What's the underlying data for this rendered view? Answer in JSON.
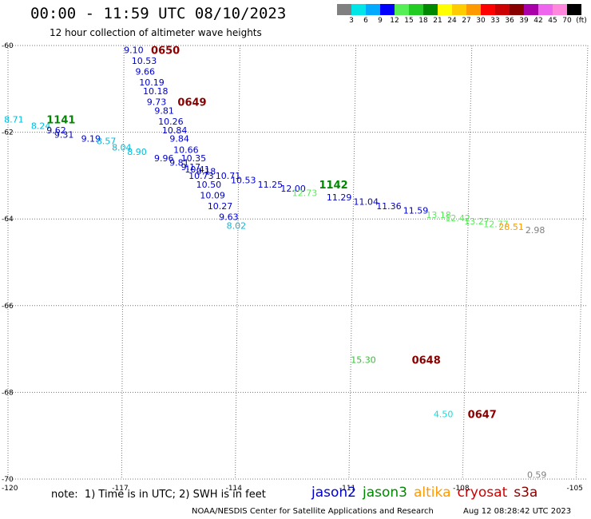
{
  "header": {
    "title": "00:00 - 11:59 UTC 08/10/2023",
    "subtitle": "12 hour collection of altimeter wave heights"
  },
  "colorbar": {
    "colors": [
      "#808080",
      "#00e5e5",
      "#00aaff",
      "#0000ff",
      "#55ee55",
      "#22cc22",
      "#008800",
      "#ffff00",
      "#ffcc00",
      "#ff9900",
      "#ff0000",
      "#cc0000",
      "#880000",
      "#aa00aa",
      "#ee66ee",
      "#ff88dd",
      "#000000"
    ],
    "labels": [
      "3",
      "6",
      "9",
      "12",
      "15",
      "18",
      "21",
      "24",
      "27",
      "30",
      "33",
      "36",
      "39",
      "42",
      "45",
      "70",
      "(ft)"
    ]
  },
  "map": {
    "lon_min": -120,
    "lon_max": -105,
    "lat_min": -70,
    "lat_max": -60,
    "lon_ticks": [
      -120,
      -117,
      -114,
      -111,
      -108,
      -105
    ],
    "lon_tick_labels": [
      "-120",
      "-117",
      "-114",
      "-111",
      "-108",
      "-105"
    ],
    "lat_ticks": [
      -60,
      -62,
      -64,
      -66,
      -68,
      -70
    ],
    "lat_tick_labels": [
      "-60",
      "-62",
      "-64",
      "-66",
      "-68",
      "-70"
    ],
    "grid": true
  },
  "chart_data": {
    "type": "scatter",
    "xlabel": "",
    "ylabel": "",
    "xlim": [
      -120,
      -105
    ],
    "ylim": [
      -70,
      -60
    ],
    "wave_heights": [
      {
        "lon": -117.0,
        "lat": -60.1,
        "text": "9.10",
        "color": "#0000cc"
      },
      {
        "lon": -116.8,
        "lat": -60.35,
        "text": "10.53",
        "color": "#0000cc"
      },
      {
        "lon": -116.7,
        "lat": -60.6,
        "text": "9.66",
        "color": "#0000cc"
      },
      {
        "lon": -116.6,
        "lat": -60.85,
        "text": "10.19",
        "color": "#0000cc"
      },
      {
        "lon": -116.5,
        "lat": -61.05,
        "text": "10.18",
        "color": "#0000cc"
      },
      {
        "lon": -116.4,
        "lat": -61.3,
        "text": "9.73",
        "color": "#0000cc"
      },
      {
        "lon": -116.2,
        "lat": -61.5,
        "text": "9.81",
        "color": "#0000cc"
      },
      {
        "lon": -116.1,
        "lat": -61.75,
        "text": "10.26",
        "color": "#0000cc"
      },
      {
        "lon": -116.0,
        "lat": -61.95,
        "text": "10.84",
        "color": "#0000cc"
      },
      {
        "lon": -115.8,
        "lat": -62.15,
        "text": "9.84",
        "color": "#0000cc"
      },
      {
        "lon": -115.7,
        "lat": -62.4,
        "text": "10.66",
        "color": "#0000cc"
      },
      {
        "lon": -115.5,
        "lat": -62.6,
        "text": "10.35",
        "color": "#0000cc"
      },
      {
        "lon": -115.4,
        "lat": -62.85,
        "text": "10.41",
        "color": "#0000cc"
      },
      {
        "lon": -115.3,
        "lat": -63.0,
        "text": "10.73",
        "color": "#0000cc"
      },
      {
        "lon": -115.1,
        "lat": -63.2,
        "text": "10.50",
        "color": "#0000cc"
      },
      {
        "lon": -115.0,
        "lat": -63.45,
        "text": "10.09",
        "color": "#0000cc"
      },
      {
        "lon": -114.8,
        "lat": -63.7,
        "text": "10.27",
        "color": "#0000cc"
      },
      {
        "lon": -114.5,
        "lat": -63.95,
        "text": "9.63",
        "color": "#0000cc"
      },
      {
        "lon": -114.3,
        "lat": -64.15,
        "text": "8.02",
        "color": "#00bbdd"
      },
      {
        "lon": -120.1,
        "lat": -61.7,
        "text": "8.71",
        "color": "#00bbdd"
      },
      {
        "lon": -119.4,
        "lat": -61.85,
        "text": "8.24",
        "color": "#00bbdd"
      },
      {
        "lon": -119.0,
        "lat": -61.95,
        "text": "9.62",
        "color": "#0000cc"
      },
      {
        "lon": -118.8,
        "lat": -62.05,
        "text": "9.31",
        "color": "#0000cc"
      },
      {
        "lon": -118.1,
        "lat": -62.15,
        "text": "9.19",
        "color": "#0000cc"
      },
      {
        "lon": -117.7,
        "lat": -62.2,
        "text": "8.57",
        "color": "#00bbdd"
      },
      {
        "lon": -117.3,
        "lat": -62.35,
        "text": "8.04",
        "color": "#00bbdd"
      },
      {
        "lon": -116.9,
        "lat": -62.45,
        "text": "8.90",
        "color": "#00bbdd"
      },
      {
        "lon": -116.2,
        "lat": -62.6,
        "text": "9.96",
        "color": "#0000cc"
      },
      {
        "lon": -115.8,
        "lat": -62.7,
        "text": "9.81",
        "color": "#0000cc"
      },
      {
        "lon": -115.5,
        "lat": -62.8,
        "text": "9.17",
        "color": "#0000cc"
      },
      {
        "lon": -115.1,
        "lat": -62.9,
        "text": "9.18",
        "color": "#0000cc"
      },
      {
        "lon": -114.6,
        "lat": -63.0,
        "text": "10.71",
        "color": "#0000cc"
      },
      {
        "lon": -114.2,
        "lat": -63.1,
        "text": "10.53",
        "color": "#0000cc"
      },
      {
        "lon": -113.5,
        "lat": -63.2,
        "text": "11.25",
        "color": "#0000cc"
      },
      {
        "lon": -112.9,
        "lat": -63.3,
        "text": "12.00",
        "color": "#0000cc"
      },
      {
        "lon": -112.6,
        "lat": -63.4,
        "text": "12.73",
        "color": "#55ee55"
      },
      {
        "lon": -111.7,
        "lat": -63.5,
        "text": "11.29",
        "color": "#0000cc"
      },
      {
        "lon": -111.0,
        "lat": -63.6,
        "text": "11.04",
        "color": "#0000cc"
      },
      {
        "lon": -110.4,
        "lat": -63.7,
        "text": "11.36",
        "color": "#0000cc"
      },
      {
        "lon": -109.7,
        "lat": -63.8,
        "text": "11.59",
        "color": "#0000cc"
      },
      {
        "lon": -109.1,
        "lat": -63.9,
        "text": "13.18",
        "color": "#55ee55"
      },
      {
        "lon": -108.6,
        "lat": -63.98,
        "text": "12.42",
        "color": "#55ee55"
      },
      {
        "lon": -108.1,
        "lat": -64.05,
        "text": "13.27",
        "color": "#55ee55"
      },
      {
        "lon": -107.6,
        "lat": -64.12,
        "text": "12.77",
        "color": "#55ee55"
      },
      {
        "lon": -107.2,
        "lat": -64.18,
        "text": "28.51",
        "color": "#ff9900"
      },
      {
        "lon": -106.5,
        "lat": -64.25,
        "text": "2.98",
        "color": "#808080"
      },
      {
        "lon": -111.0,
        "lat": -67.25,
        "text": "15.30",
        "color": "#22cc22"
      },
      {
        "lon": -108.8,
        "lat": -68.5,
        "text": "4.50",
        "color": "#00e5e5"
      },
      {
        "lon": -106.3,
        "lat": -69.9,
        "text": "0.59",
        "color": "#808080"
      }
    ],
    "time_labels": [
      {
        "lon": -116.3,
        "lat": -60.1,
        "text": "0650",
        "color": "#880000"
      },
      {
        "lon": -115.6,
        "lat": -61.3,
        "text": "0649",
        "color": "#880000"
      },
      {
        "lon": -119.0,
        "lat": -61.7,
        "text": "1141",
        "color": "#008800"
      },
      {
        "lon": -111.9,
        "lat": -63.2,
        "text": "1142",
        "color": "#008800"
      },
      {
        "lon": -109.4,
        "lat": -67.25,
        "text": "0648",
        "color": "#880000"
      },
      {
        "lon": -107.9,
        "lat": -68.5,
        "text": "0647",
        "color": "#880000"
      }
    ]
  },
  "footer": {
    "note": "note:  1) Time is in UTC; 2) SWH is in feet",
    "satellites": [
      {
        "name": "jason2",
        "color": "#0000cc"
      },
      {
        "name": "jason3",
        "color": "#008800"
      },
      {
        "name": "altika",
        "color": "#ff9900"
      },
      {
        "name": "cryosat",
        "color": "#cc0000"
      },
      {
        "name": "s3a",
        "color": "#880000"
      }
    ],
    "credit": "NOAA/NESDIS Center for Satellite Applications and Research",
    "generated": "Aug 12 08:28:42 UTC 2023"
  }
}
